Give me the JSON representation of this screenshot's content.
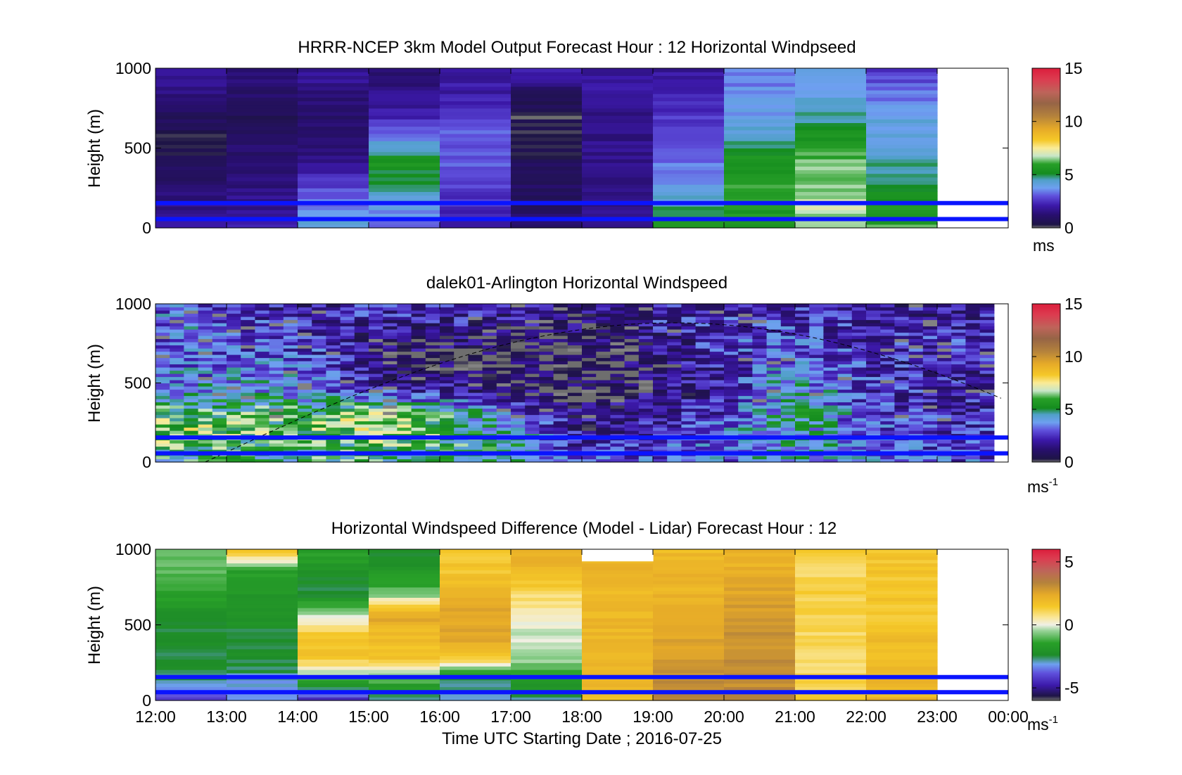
{
  "chart_data": [
    {
      "type": "heatmap",
      "title": "HRRR-NCEP 3km Model Output   Forecast Hour : 12 Horizontal Windpseed",
      "ylabel": "Height (m)",
      "ylim": [
        0,
        1000
      ],
      "yticks": [
        "0",
        "500",
        "1000"
      ],
      "x_range_hours": [
        12,
        24
      ],
      "data_end_hour": 23,
      "colorbar": {
        "ticks": [
          "0",
          "5",
          "10",
          "15"
        ],
        "min": 0,
        "max": 15,
        "unit": "ms",
        "unit_sup": ""
      },
      "columns": [
        {
          "t": 12,
          "v": [
            2.5,
            1.5,
            1.0,
            0.5,
            0.3,
            0.8,
            1.5,
            2.0
          ]
        },
        {
          "t": 13,
          "v": [
            2.0,
            1.6,
            1.5,
            1.2,
            1.0,
            0.5,
            1.2,
            1.5
          ]
        },
        {
          "t": 14,
          "v": [
            4.5,
            3.5,
            2.5,
            1.5,
            1.0,
            1.2,
            1.5,
            1.8
          ]
        },
        {
          "t": 15,
          "v": [
            3.0,
            4.0,
            4.8,
            5.5,
            3.5,
            2.0,
            1.5,
            1.0
          ]
        },
        {
          "t": 16,
          "v": [
            2.0,
            2.5,
            2.8,
            3.0,
            3.2,
            2.5,
            2.0,
            2.0
          ]
        },
        {
          "t": 17,
          "v": [
            1.0,
            1.0,
            0.8,
            0.6,
            0.5,
            0.3,
            1.0,
            2.2
          ]
        },
        {
          "t": 18,
          "v": [
            1.5,
            1.5,
            1.5,
            1.6,
            1.6,
            1.7,
            1.8,
            2.0
          ]
        },
        {
          "t": 19,
          "v": [
            6.0,
            4.5,
            3.8,
            3.3,
            3.0,
            2.5,
            2.0,
            1.8
          ]
        },
        {
          "t": 20,
          "v": [
            5.5,
            5.8,
            5.8,
            5.5,
            4.5,
            3.8,
            3.6,
            3.3
          ]
        },
        {
          "t": 21,
          "v": [
            6.5,
            6.8,
            6.5,
            6.2,
            5.5,
            4.5,
            4.0,
            3.7
          ]
        },
        {
          "t": 22,
          "v": [
            6.0,
            5.5,
            5.0,
            4.5,
            4.2,
            3.9,
            3.2,
            2.5
          ]
        }
      ],
      "reference_lines_m": [
        55,
        155
      ]
    },
    {
      "type": "heatmap",
      "title": "dalek01-Arlington  Horizontal Windspeed",
      "ylabel": "Height (m)",
      "ylim": [
        0,
        1000
      ],
      "yticks": [
        "0",
        "500",
        "1000"
      ],
      "x_range_hours": [
        12,
        24
      ],
      "data_end_hour": 23.8,
      "colorbar": {
        "ticks": [
          "0",
          "5",
          "10",
          "15"
        ],
        "min": 0,
        "max": 15,
        "unit": "ms",
        "unit_sup": "-1"
      },
      "profiles": [
        {
          "t": 12.5,
          "v": [
            5.0,
            6.0,
            6.5,
            5.5,
            4.0,
            3.5,
            3.0,
            3.0,
            3.5,
            3.0
          ]
        },
        {
          "t": 14.0,
          "v": [
            5.0,
            5.5,
            6.0,
            5.5,
            3.8,
            3.5,
            3.2,
            2.5,
            2.0,
            1.5
          ]
        },
        {
          "t": 15.0,
          "v": [
            5.5,
            6.0,
            6.8,
            6.2,
            2.5,
            1.5,
            1.3,
            1.5,
            2.0,
            2.5
          ]
        },
        {
          "t": 16.0,
          "v": [
            5.0,
            5.5,
            6.0,
            5.0,
            2.0,
            1.0,
            0.8,
            1.0,
            2.0,
            2.0
          ]
        },
        {
          "t": 17.0,
          "v": [
            4.5,
            5.0,
            4.0,
            3.0,
            1.0,
            0.6,
            0.5,
            0.8,
            1.5,
            2.0
          ]
        },
        {
          "t": 18.0,
          "v": [
            3.0,
            2.0,
            1.5,
            1.0,
            0.6,
            0.5,
            0.5,
            0.8,
            1.0,
            1.5
          ]
        },
        {
          "t": 19.0,
          "v": [
            3.0,
            2.5,
            2.0,
            1.5,
            1.2,
            1.0,
            1.0,
            1.5,
            2.0,
            2.0
          ]
        },
        {
          "t": 20.0,
          "v": [
            3.5,
            3.5,
            3.0,
            2.5,
            2.0,
            2.0,
            2.2,
            2.5,
            2.5,
            2.0
          ]
        },
        {
          "t": 21.0,
          "v": [
            4.0,
            4.5,
            4.5,
            4.8,
            4.5,
            4.0,
            3.5,
            3.0,
            2.5,
            2.0
          ]
        },
        {
          "t": 22.0,
          "v": [
            3.5,
            3.5,
            3.0,
            3.0,
            2.5,
            2.5,
            2.3,
            2.0,
            2.0,
            1.8
          ]
        },
        {
          "t": 23.0,
          "v": [
            3.0,
            2.5,
            2.5,
            2.0,
            2.0,
            2.0,
            2.2,
            2.5,
            2.0,
            1.5
          ]
        }
      ],
      "reference_lines_m": [
        55,
        155
      ]
    },
    {
      "type": "heatmap",
      "title": "Horizontal Windspeed Difference (Model - Lidar) Forecast Hour : 12",
      "ylabel": "Height (m)",
      "ylim": [
        0,
        1000
      ],
      "yticks": [
        "0",
        "500",
        "1000"
      ],
      "xlabel": "Time UTC  Starting Date ; 2016-07-25",
      "xticks": [
        "12:00",
        "13:00",
        "14:00",
        "15:00",
        "16:00",
        "17:00",
        "18:00",
        "19:00",
        "20:00",
        "21:00",
        "22:00",
        "23:00",
        "00:00"
      ],
      "x_range_hours": [
        12,
        24
      ],
      "data_end_hour": 23,
      "colorbar": {
        "ticks": [
          "-5",
          "0",
          "5"
        ],
        "min": -6,
        "max": 6,
        "unit": "ms",
        "unit_sup": "-1"
      },
      "columns": [
        {
          "t": 12,
          "v": [
            -4.0,
            -2.5,
            -2.5,
            -2.5,
            -2.2,
            -1.5,
            -1.0,
            -0.8
          ]
        },
        {
          "t": 13,
          "v": [
            -3.5,
            -3.0,
            -2.2,
            -2.5,
            -2.0,
            -2.0,
            -1.5,
            2.0
          ]
        },
        {
          "t": 14,
          "v": [
            -4.5,
            -1.0,
            1.5,
            1.5,
            -0.5,
            -2.5,
            -2.0,
            -1.5
          ]
        },
        {
          "t": 15,
          "v": [
            -3.0,
            -1.0,
            1.5,
            1.8,
            2.5,
            -1.0,
            -2.0,
            -2.5
          ]
        },
        {
          "t": 16,
          "v": [
            -3.0,
            -2.5,
            1.5,
            2.5,
            2.5,
            2.0,
            1.5,
            1.5
          ]
        },
        {
          "t": 17,
          "v": [
            -3.0,
            -1.5,
            -0.5,
            -0.2,
            0.5,
            1.0,
            2.0,
            2.0
          ]
        },
        {
          "t": 18,
          "v": [
            1.5,
            2.0,
            2.0,
            2.0,
            2.0,
            2.0,
            2.0,
            2.0
          ]
        },
        {
          "t": 19,
          "v": [
            3.5,
            3.0,
            2.8,
            2.5,
            2.5,
            2.0,
            2.0,
            1.8
          ]
        },
        {
          "t": 20,
          "v": [
            3.5,
            3.0,
            3.0,
            3.0,
            2.8,
            2.5,
            2.2,
            2.0
          ]
        },
        {
          "t": 21,
          "v": [
            1.5,
            1.0,
            1.0,
            1.0,
            1.2,
            1.2,
            1.0,
            1.2
          ]
        },
        {
          "t": 22,
          "v": [
            2.0,
            2.0,
            1.8,
            1.8,
            1.5,
            1.5,
            1.5,
            1.5
          ]
        }
      ],
      "no_data_regions": [
        {
          "t_start": 18,
          "t_end": 19,
          "h_start": 920,
          "h_end": 1000
        }
      ],
      "reference_lines_m": [
        55,
        155
      ]
    }
  ]
}
